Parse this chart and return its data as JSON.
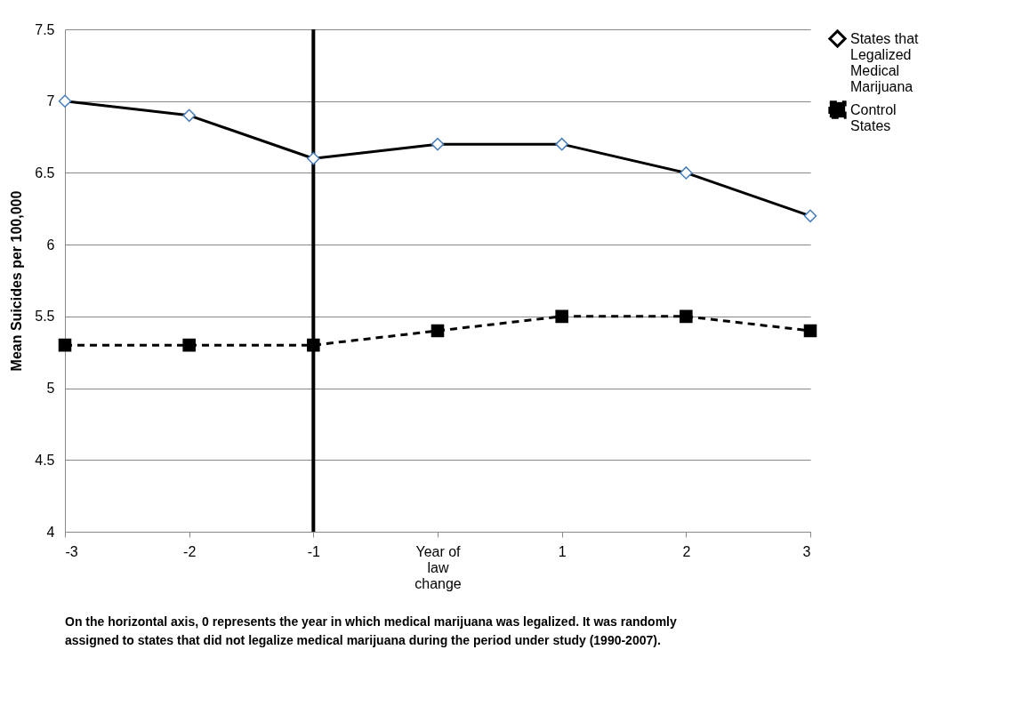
{
  "chart_data": {
    "type": "line",
    "ylabel": "Mean Suicides per 100,000",
    "categories": [
      "-3",
      "-2",
      "-1",
      "Year of law change",
      "1",
      "2",
      "3"
    ],
    "series": [
      {
        "name": "States that Legalized Medical Marijuana",
        "color": "#000000",
        "marker": "diamond",
        "line_style": "solid",
        "values": [
          7,
          6.9,
          6.6,
          6.7,
          6.7,
          6.5,
          6.2
        ]
      },
      {
        "name": "Control States",
        "color": "#000000",
        "marker": "square",
        "line_style": "dashed",
        "values": [
          5.3,
          5.3,
          5.3,
          5.4,
          5.5,
          5.5,
          5.4
        ]
      }
    ],
    "ylim": [
      4,
      7.5
    ],
    "yticks": [
      4,
      4.5,
      5,
      5.5,
      6,
      6.5,
      7,
      7.5
    ],
    "grid": "y",
    "legend": "right",
    "ref_lines": [
      {
        "axis": "x",
        "value": "-1",
        "color": "#000000"
      }
    ],
    "annotations": [
      "On the horizontal axis, 0 represents the year in which medical marijuana was legalized.  It was randomly assigned to states that did not legalize medical marijuana during the period under study (1990-2007)."
    ]
  }
}
